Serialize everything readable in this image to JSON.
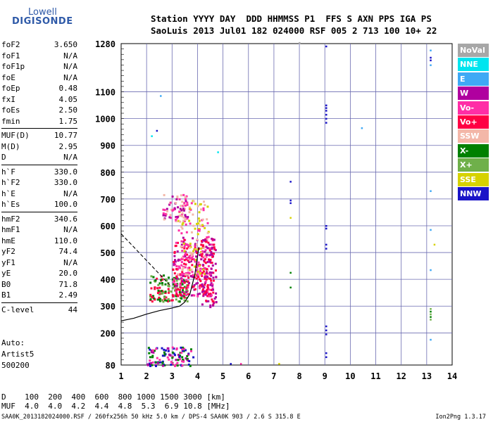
{
  "logo": {
    "line1": "Lowell",
    "line2": "DIGISONDE"
  },
  "header": {
    "line1": "Station YYYY DAY  DDD HHMMSS P1  FFS S AXN PPS IGA PS",
    "line2": "SaoLuis 2013 Jul01 182 024000 RSF 005 2 713 100 10+ 22"
  },
  "params": [
    [
      {
        "k": "foF2",
        "v": "3.650"
      },
      {
        "k": "foF1",
        "v": "N/A"
      },
      {
        "k": "foF1p",
        "v": "N/A"
      },
      {
        "k": "foE",
        "v": "N/A"
      },
      {
        "k": "foEp",
        "v": "0.48"
      },
      {
        "k": "fxI",
        "v": "4.05"
      },
      {
        "k": "foEs",
        "v": "2.50"
      },
      {
        "k": "fmin",
        "v": "1.75"
      }
    ],
    [
      {
        "k": "MUF(D)",
        "v": "10.77"
      },
      {
        "k": "M(D)",
        "v": "2.95"
      },
      {
        "k": "D",
        "v": "N/A"
      }
    ],
    [
      {
        "k": "h`F",
        "v": "330.0"
      },
      {
        "k": "h`F2",
        "v": "330.0"
      },
      {
        "k": "h`E",
        "v": "N/A"
      },
      {
        "k": "h`Es",
        "v": "100.0"
      }
    ],
    [
      {
        "k": "hmF2",
        "v": "340.6"
      },
      {
        "k": "hmF1",
        "v": "N/A"
      },
      {
        "k": "hmE",
        "v": "110.0"
      },
      {
        "k": "yF2",
        "v": "74.4"
      },
      {
        "k": "yF1",
        "v": "N/A"
      },
      {
        "k": "yE",
        "v": "20.0"
      },
      {
        "k": "B0",
        "v": "71.8"
      },
      {
        "k": "B1",
        "v": "2.49"
      }
    ],
    [
      {
        "k": "C-level",
        "v": "44"
      }
    ]
  ],
  "auto": {
    "line1": "Auto:",
    "line2": "Artist5",
    "line3": "500200"
  },
  "legend": [
    {
      "label": "NoVal",
      "color": "#a7a7a7"
    },
    {
      "label": "NNE",
      "color": "#00e5ef"
    },
    {
      "label": "E",
      "color": "#3fa9f5"
    },
    {
      "label": "W",
      "color": "#b0009f"
    },
    {
      "label": "Vo-",
      "color": "#ff2ea6"
    },
    {
      "label": "Vo+",
      "color": "#ff0044"
    },
    {
      "label": "SSW",
      "color": "#f3b7a8"
    },
    {
      "label": "X-",
      "color": "#008000"
    },
    {
      "label": "X+",
      "color": "#6fb04a"
    },
    {
      "label": "SSE",
      "color": "#d6d200"
    },
    {
      "label": "NNW",
      "color": "#1a14c8"
    }
  ],
  "scale": {
    "line1": "D    100  200  400  600  800 1000 1500 3000 [km]",
    "line2": "MUF  4.0  4.0  4.2  4.4  4.8  5.3  6.9 10.8 [MHz]"
  },
  "footer": {
    "left": "SAA0K_2013182024000.RSF / 260fx256h 50 kHz 5.0 km / DPS-4 SAA0K 903 / 2.6 S 315.8 E",
    "right": "Ion2Png 1.3.17"
  },
  "chart_data": {
    "type": "scatter",
    "xlim": [
      1,
      14
    ],
    "ylim": [
      80,
      1280
    ],
    "xticks": [
      1,
      2,
      3,
      4,
      5,
      6,
      7,
      8,
      9,
      10,
      11,
      12,
      13,
      14
    ],
    "yticks": [
      80,
      200,
      300,
      400,
      500,
      600,
      700,
      800,
      900,
      1000,
      1100,
      1280
    ],
    "grid": true,
    "profile_curve": [
      [
        1,
        245
      ],
      [
        1.5,
        255
      ],
      [
        2,
        270
      ],
      [
        2.5,
        283
      ],
      [
        3,
        293
      ],
      [
        3.3,
        300
      ],
      [
        3.5,
        315
      ],
      [
        3.7,
        345
      ],
      [
        3.9,
        420
      ],
      [
        4.05,
        520
      ]
    ],
    "dashed_curve": [
      [
        1,
        570
      ],
      [
        1.5,
        520
      ],
      [
        2,
        470
      ],
      [
        2.5,
        420
      ],
      [
        2.9,
        380
      ]
    ],
    "clusters": [
      {
        "x": [
          2.1,
          3.6
        ],
        "y": [
          320,
          420
        ],
        "n": 160,
        "colors": [
          "#008000",
          "#6fb04a",
          "#ff0044"
        ]
      },
      {
        "x": [
          3.0,
          4.6
        ],
        "y": [
          340,
          560
        ],
        "n": 260,
        "colors": [
          "#ff0044",
          "#ff2ea6",
          "#b0009f"
        ]
      },
      {
        "x": [
          3.2,
          4.4
        ],
        "y": [
          420,
          700
        ],
        "n": 160,
        "colors": [
          "#f3b7a8",
          "#d6d200",
          "#ff2ea6"
        ]
      },
      {
        "x": [
          2.6,
          3.6
        ],
        "y": [
          620,
          720
        ],
        "n": 60,
        "colors": [
          "#ff2ea6",
          "#b0009f",
          "#f3b7a8"
        ]
      },
      {
        "x": [
          2.0,
          3.8
        ],
        "y": [
          80,
          150
        ],
        "n": 110,
        "colors": [
          "#1a14c8",
          "#b0009f",
          "#ff2ea6",
          "#008000"
        ]
      },
      {
        "x": [
          4.1,
          4.7
        ],
        "y": [
          300,
          560
        ],
        "n": 80,
        "colors": [
          "#ff0044",
          "#b0009f"
        ]
      }
    ],
    "points": [
      {
        "x": 9.05,
        "y": 1270,
        "c": "#1a14c8"
      },
      {
        "x": 9.05,
        "y": 1050,
        "c": "#1a14c8"
      },
      {
        "x": 9.05,
        "y": 1040,
        "c": "#1a14c8"
      },
      {
        "x": 9.05,
        "y": 1030,
        "c": "#1a14c8"
      },
      {
        "x": 9.05,
        "y": 1015,
        "c": "#1a14c8"
      },
      {
        "x": 9.05,
        "y": 1000,
        "c": "#1a14c8"
      },
      {
        "x": 9.05,
        "y": 985,
        "c": "#1a14c8"
      },
      {
        "x": 9.05,
        "y": 600,
        "c": "#1a14c8"
      },
      {
        "x": 9.05,
        "y": 590,
        "c": "#1a14c8"
      },
      {
        "x": 9.05,
        "y": 530,
        "c": "#1a14c8"
      },
      {
        "x": 9.05,
        "y": 515,
        "c": "#1a14c8"
      },
      {
        "x": 9.05,
        "y": 225,
        "c": "#1a14c8"
      },
      {
        "x": 9.05,
        "y": 210,
        "c": "#1a14c8"
      },
      {
        "x": 9.05,
        "y": 195,
        "c": "#1a14c8"
      },
      {
        "x": 9.05,
        "y": 125,
        "c": "#1a14c8"
      },
      {
        "x": 9.05,
        "y": 110,
        "c": "#1a14c8"
      },
      {
        "x": 7.65,
        "y": 765,
        "c": "#1a14c8"
      },
      {
        "x": 7.65,
        "y": 695,
        "c": "#1a14c8"
      },
      {
        "x": 7.65,
        "y": 685,
        "c": "#1a14c8"
      },
      {
        "x": 7.65,
        "y": 630,
        "c": "#d6d200"
      },
      {
        "x": 7.65,
        "y": 425,
        "c": "#008000"
      },
      {
        "x": 7.65,
        "y": 370,
        "c": "#008000"
      },
      {
        "x": 13.15,
        "y": 1255,
        "c": "#3fa9f5"
      },
      {
        "x": 13.15,
        "y": 1228,
        "c": "#1a14c8"
      },
      {
        "x": 13.15,
        "y": 1218,
        "c": "#1a14c8"
      },
      {
        "x": 13.15,
        "y": 1200,
        "c": "#3fa9f5"
      },
      {
        "x": 13.15,
        "y": 730,
        "c": "#3fa9f5"
      },
      {
        "x": 13.15,
        "y": 585,
        "c": "#3fa9f5"
      },
      {
        "x": 13.15,
        "y": 435,
        "c": "#3fa9f5"
      },
      {
        "x": 13.15,
        "y": 290,
        "c": "#6fb04a"
      },
      {
        "x": 13.15,
        "y": 280,
        "c": "#008000"
      },
      {
        "x": 13.15,
        "y": 270,
        "c": "#6fb04a"
      },
      {
        "x": 13.15,
        "y": 260,
        "c": "#008000"
      },
      {
        "x": 13.15,
        "y": 250,
        "c": "#6fb04a"
      },
      {
        "x": 13.15,
        "y": 175,
        "c": "#3fa9f5"
      },
      {
        "x": 13.3,
        "y": 530,
        "c": "#d6d200"
      },
      {
        "x": 10.45,
        "y": 965,
        "c": "#3fa9f5"
      },
      {
        "x": 2.55,
        "y": 1085,
        "c": "#3fa9f5"
      },
      {
        "x": 2.4,
        "y": 955,
        "c": "#1a14c8"
      },
      {
        "x": 2.2,
        "y": 935,
        "c": "#00e5ef"
      },
      {
        "x": 4.8,
        "y": 875,
        "c": "#00e5ef"
      },
      {
        "x": 7.2,
        "y": 85,
        "c": "#d6d200"
      },
      {
        "x": 5.7,
        "y": 85,
        "c": "#ff2ea6"
      },
      {
        "x": 5.3,
        "y": 85,
        "c": "#1a14c8"
      },
      {
        "x": 8.0,
        "y": 1283,
        "c": "#a7a7a7"
      }
    ]
  }
}
